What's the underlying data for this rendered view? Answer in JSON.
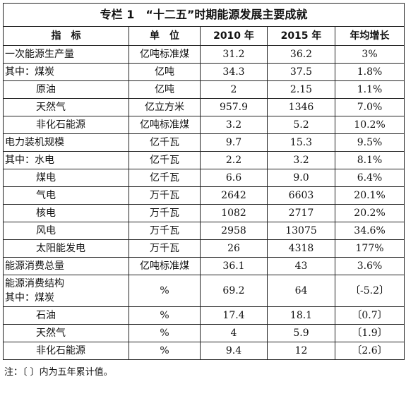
{
  "title": "专栏 1　“十二五”时期能源发展主要成就",
  "headers": {
    "indicator": "指　标",
    "unit": "单　位",
    "y2010": "2010 年",
    "y2015": "2015 年",
    "growth": "年均增长"
  },
  "rows": [
    {
      "name": "一次能源生产量",
      "unit": "亿吨标准煤",
      "v2010": "31.2",
      "v2015": "36.2",
      "growth": "3%"
    },
    {
      "name": "其中：煤炭",
      "unit": "亿吨",
      "v2010": "34.3",
      "v2015": "37.5",
      "growth": "1.8%"
    },
    {
      "name": "原油",
      "unit": "亿吨",
      "v2010": "2",
      "v2015": "2.15",
      "growth": "1.1%"
    },
    {
      "name": "天然气",
      "unit": "亿立方米",
      "v2010": "957.9",
      "v2015": "1346",
      "growth": "7.0%"
    },
    {
      "name": "非化石能源",
      "unit": "亿吨标准煤",
      "v2010": "3.2",
      "v2015": "5.2",
      "growth": "10.2%"
    },
    {
      "name": "电力装机规模",
      "unit": "亿千瓦",
      "v2010": "9.7",
      "v2015": "15.3",
      "growth": "9.5%"
    },
    {
      "name": "其中：水电",
      "unit": "亿千瓦",
      "v2010": "2.2",
      "v2015": "3.2",
      "growth": "8.1%"
    },
    {
      "name": "煤电",
      "unit": "亿千瓦",
      "v2010": "6.6",
      "v2015": "9.0",
      "growth": "6.4%"
    },
    {
      "name": "气电",
      "unit": "万千瓦",
      "v2010": "2642",
      "v2015": "6603",
      "growth": "20.1%"
    },
    {
      "name": "核电",
      "unit": "万千瓦",
      "v2010": "1082",
      "v2015": "2717",
      "growth": "20.2%"
    },
    {
      "name": "风电",
      "unit": "万千瓦",
      "v2010": "2958",
      "v2015": "13075",
      "growth": "34.6%"
    },
    {
      "name": "太阳能发电",
      "unit": "万千瓦",
      "v2010": "26",
      "v2015": "4318",
      "growth": "177%"
    },
    {
      "name": "能源消费总量",
      "unit": "亿吨标准煤",
      "v2010": "36.1",
      "v2015": "43",
      "growth": "3.6%"
    },
    {
      "name_line1": "能源消费结构",
      "name_line2": "其中：煤炭",
      "unit": "%",
      "v2010": "69.2",
      "v2015": "64",
      "growth": "〔-5.2〕"
    },
    {
      "name": "石油",
      "unit": "%",
      "v2010": "17.4",
      "v2015": "18.1",
      "growth": "〔0.7〕"
    },
    {
      "name": "天然气",
      "unit": "%",
      "v2010": "4",
      "v2015": "5.9",
      "growth": "〔1.9〕"
    },
    {
      "name": "非化石能源",
      "unit": "%",
      "v2010": "9.4",
      "v2015": "12",
      "growth": "〔2.6〕"
    }
  ],
  "note": "注：〔 〕内为五年累计值。"
}
